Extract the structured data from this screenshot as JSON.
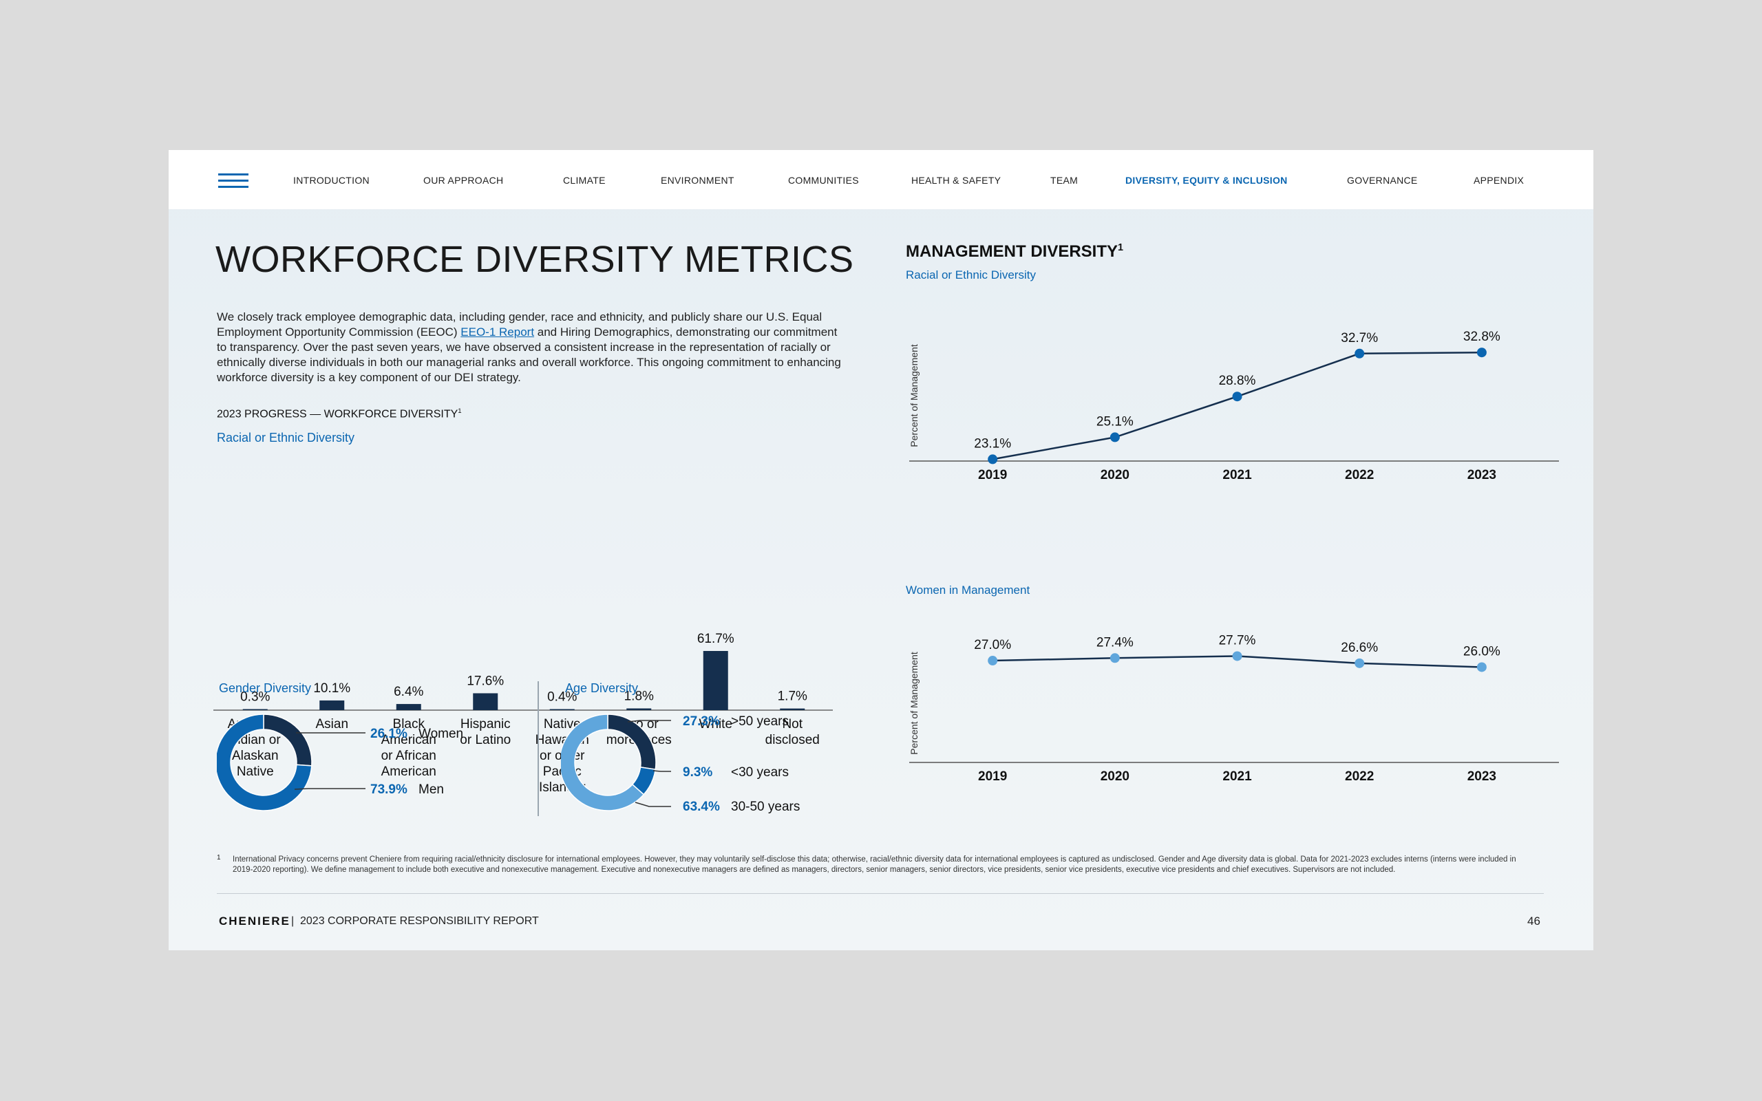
{
  "nav": {
    "items": [
      {
        "label": "INTRODUCTION",
        "active": false
      },
      {
        "label": "OUR APPROACH",
        "active": false
      },
      {
        "label": "CLIMATE",
        "active": false
      },
      {
        "label": "ENVIRONMENT",
        "active": false
      },
      {
        "label": "COMMUNITIES",
        "active": false
      },
      {
        "label": "HEALTH & SAFETY",
        "active": false
      },
      {
        "label": "TEAM",
        "active": false
      },
      {
        "label": "DIVERSITY, EQUITY & INCLUSION",
        "active": true
      },
      {
        "label": "GOVERNANCE",
        "active": false
      },
      {
        "label": "APPENDIX",
        "active": false
      }
    ]
  },
  "title": "WORKFORCE DIVERSITY METRICS",
  "intro": {
    "before": "We closely track employee demographic data, including gender, race and ethnicity, and publicly share our U.S. Equal Employment Opportunity Commission (EEOC) ",
    "link": "EEO-1 Report",
    "after": " and Hiring Demographics, demonstrating our commitment to transparency. Over the past seven years, we have observed a consistent increase in the representation of racially or ethnically diverse individuals in both our managerial ranks and overall workforce. This ongoing commitment to enhancing workforce diversity is a key component of our DEI strategy."
  },
  "progress_heading": "2023 PROGRESS — WORKFORCE DIVERSITY",
  "footnote_mark": "1",
  "management_heading": "MANAGEMENT DIVERSITY",
  "footnote": {
    "mark": "1",
    "text": "International Privacy concerns prevent Cheniere from requiring racial/ethnicity disclosure for international employees. However, they may voluntarily self-disclose this data; otherwise, racial/ethnic diversity data for international employees is captured as undisclosed. Gender and Age diversity data is global. Data for 2021-2023 excludes interns (interns were included in 2019-2020 reporting).  We define management to include both executive and nonexecutive management. Executive and nonexecutive managers are defined as managers, directors, senior managers, senior directors, vice presidents, senior vice presidents, executive vice presidents and chief executives. Supervisors are not included."
  },
  "footer": {
    "brand": "CHENIERE",
    "separator": "|",
    "report": "2023 CORPORATE RESPONSIBILITY REPORT",
    "page": "46"
  },
  "colors": {
    "navy": "#152f4e",
    "blue": "#0b66b1",
    "light_blue": "#5fa6dc",
    "axis": "#555555"
  },
  "chart_data": [
    {
      "type": "bar",
      "title": "Racial or Ethnic Diversity",
      "categories": [
        "American Indian or Alaskan Native",
        "Asian",
        "Black American or African American",
        "Hispanic or Latino",
        "Native Hawaiian or other Pacific Islander",
        "Two or more races",
        "White",
        "Not disclosed"
      ],
      "category_lines": [
        [
          "American",
          "Indian or",
          "Alaskan",
          "Native"
        ],
        [
          "Asian"
        ],
        [
          "Black",
          "American",
          "or African",
          "American"
        ],
        [
          "Hispanic",
          "or Latino"
        ],
        [
          "Native",
          "Hawaiian",
          "or other",
          "Pacific",
          "Islander"
        ],
        [
          "Two or",
          "more races"
        ],
        [
          "White"
        ],
        [
          "Not",
          "disclosed"
        ]
      ],
      "values": [
        0.3,
        10.1,
        6.4,
        17.6,
        0.4,
        1.8,
        61.7,
        1.7
      ],
      "labels": [
        "0.3%",
        "10.1%",
        "6.4%",
        "17.6%",
        "0.4%",
        "1.8%",
        "61.7%",
        "1.7%"
      ],
      "unit": "%"
    },
    {
      "type": "pie",
      "title": "Gender Diversity",
      "slices": [
        {
          "label": "Women",
          "value": 26.1,
          "display": "26.1%",
          "color": "#152f4e"
        },
        {
          "label": "Men",
          "value": 73.9,
          "display": "73.9%",
          "color": "#0b66b1"
        }
      ]
    },
    {
      "type": "pie",
      "title": "Age Diversity",
      "slices": [
        {
          "label": ">50 years",
          "value": 27.3,
          "display": "27.3%",
          "color": "#152f4e"
        },
        {
          "label": "<30 years",
          "value": 9.3,
          "display": "9.3%",
          "color": "#0b66b1"
        },
        {
          "label": "30-50 years",
          "value": 63.4,
          "display": "63.4%",
          "color": "#5fa6dc"
        }
      ]
    },
    {
      "type": "line",
      "title": "Racial or Ethnic Diversity",
      "ylabel": "Percent of Management",
      "x": [
        "2019",
        "2020",
        "2021",
        "2022",
        "2023"
      ],
      "values": [
        23.1,
        25.1,
        28.8,
        32.7,
        32.8
      ],
      "labels": [
        "23.1%",
        "25.1%",
        "28.8%",
        "32.7%",
        "32.8%"
      ],
      "ylim": [
        22,
        34
      ],
      "marker_color": "#0b66b1"
    },
    {
      "type": "line",
      "title": "Women in Management",
      "ylabel": "Percent of Management",
      "x": [
        "2019",
        "2020",
        "2021",
        "2022",
        "2023"
      ],
      "values": [
        27.0,
        27.4,
        27.7,
        26.6,
        26.0
      ],
      "labels": [
        "27.0%",
        "27.4%",
        "27.7%",
        "26.6%",
        "26.0%"
      ],
      "ylim": [
        15,
        32
      ],
      "marker_color": "#5fa6dc"
    }
  ]
}
